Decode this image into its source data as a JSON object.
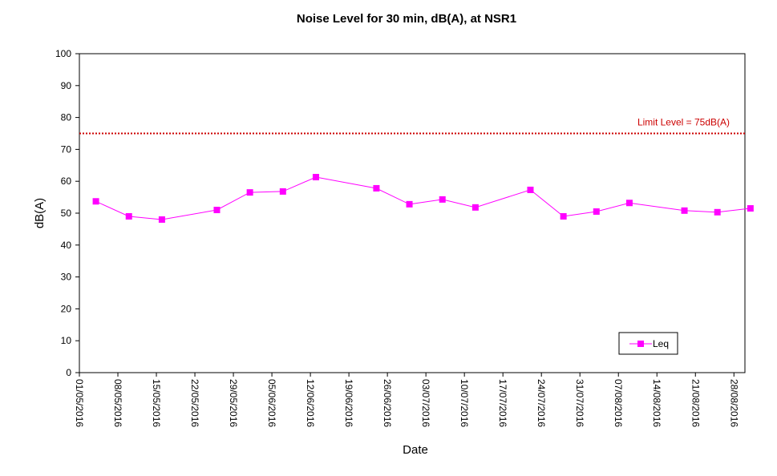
{
  "chart_data": {
    "type": "line",
    "title": "Noise Level for 30 min,  dB(A), at NSR1",
    "xlabel": "Date",
    "ylabel": "dB(A)",
    "ylim": [
      0,
      100
    ],
    "yticks": [
      0,
      10,
      20,
      30,
      40,
      50,
      60,
      70,
      80,
      90,
      100
    ],
    "xlim": [
      "2016-05-01",
      "2016-08-30"
    ],
    "xticks": [
      {
        "date": "2016-05-01",
        "label": "01/05/2016"
      },
      {
        "date": "2016-05-08",
        "label": "08/05/2016"
      },
      {
        "date": "2016-05-15",
        "label": "15/05/2016"
      },
      {
        "date": "2016-05-22",
        "label": "22/05/2016"
      },
      {
        "date": "2016-05-29",
        "label": "29/05/2016"
      },
      {
        "date": "2016-06-05",
        "label": "05/06/2016"
      },
      {
        "date": "2016-06-12",
        "label": "12/06/2016"
      },
      {
        "date": "2016-06-19",
        "label": "19/06/2016"
      },
      {
        "date": "2016-06-26",
        "label": "26/06/2016"
      },
      {
        "date": "2016-07-03",
        "label": "03/07/2016"
      },
      {
        "date": "2016-07-10",
        "label": "10/07/2016"
      },
      {
        "date": "2016-07-17",
        "label": "17/07/2016"
      },
      {
        "date": "2016-07-24",
        "label": "24/07/2016"
      },
      {
        "date": "2016-07-31",
        "label": "31/07/2016"
      },
      {
        "date": "2016-08-07",
        "label": "07/08/2016"
      },
      {
        "date": "2016-08-14",
        "label": "14/08/2016"
      },
      {
        "date": "2016-08-21",
        "label": "21/08/2016"
      },
      {
        "date": "2016-08-28",
        "label": "28/08/2016"
      }
    ],
    "grid": false,
    "legend_position": "bottom-right",
    "series": [
      {
        "name": "Leq",
        "color": "#ff00ff",
        "marker": "square",
        "points": [
          {
            "x": "2016-05-04",
            "y": 53.7
          },
          {
            "x": "2016-05-10",
            "y": 49.0
          },
          {
            "x": "2016-05-16",
            "y": 48.0
          },
          {
            "x": "2016-05-26",
            "y": 51.0
          },
          {
            "x": "2016-06-01",
            "y": 56.5
          },
          {
            "x": "2016-06-07",
            "y": 56.8
          },
          {
            "x": "2016-06-13",
            "y": 61.3
          },
          {
            "x": "2016-06-24",
            "y": 57.8
          },
          {
            "x": "2016-06-30",
            "y": 52.8
          },
          {
            "x": "2016-07-06",
            "y": 54.3
          },
          {
            "x": "2016-07-12",
            "y": 51.8
          },
          {
            "x": "2016-07-22",
            "y": 57.3
          },
          {
            "x": "2016-07-28",
            "y": 49.0
          },
          {
            "x": "2016-08-03",
            "y": 50.5
          },
          {
            "x": "2016-08-09",
            "y": 53.2
          },
          {
            "x": "2016-08-19",
            "y": 50.8
          },
          {
            "x": "2016-08-25",
            "y": 50.3
          },
          {
            "x": "2016-08-31",
            "y": 51.5
          }
        ]
      }
    ],
    "limit_line": {
      "label": "Limit Level  = 75dB(A)",
      "value": 75,
      "color": "#cc0000",
      "style": "dotted"
    }
  }
}
